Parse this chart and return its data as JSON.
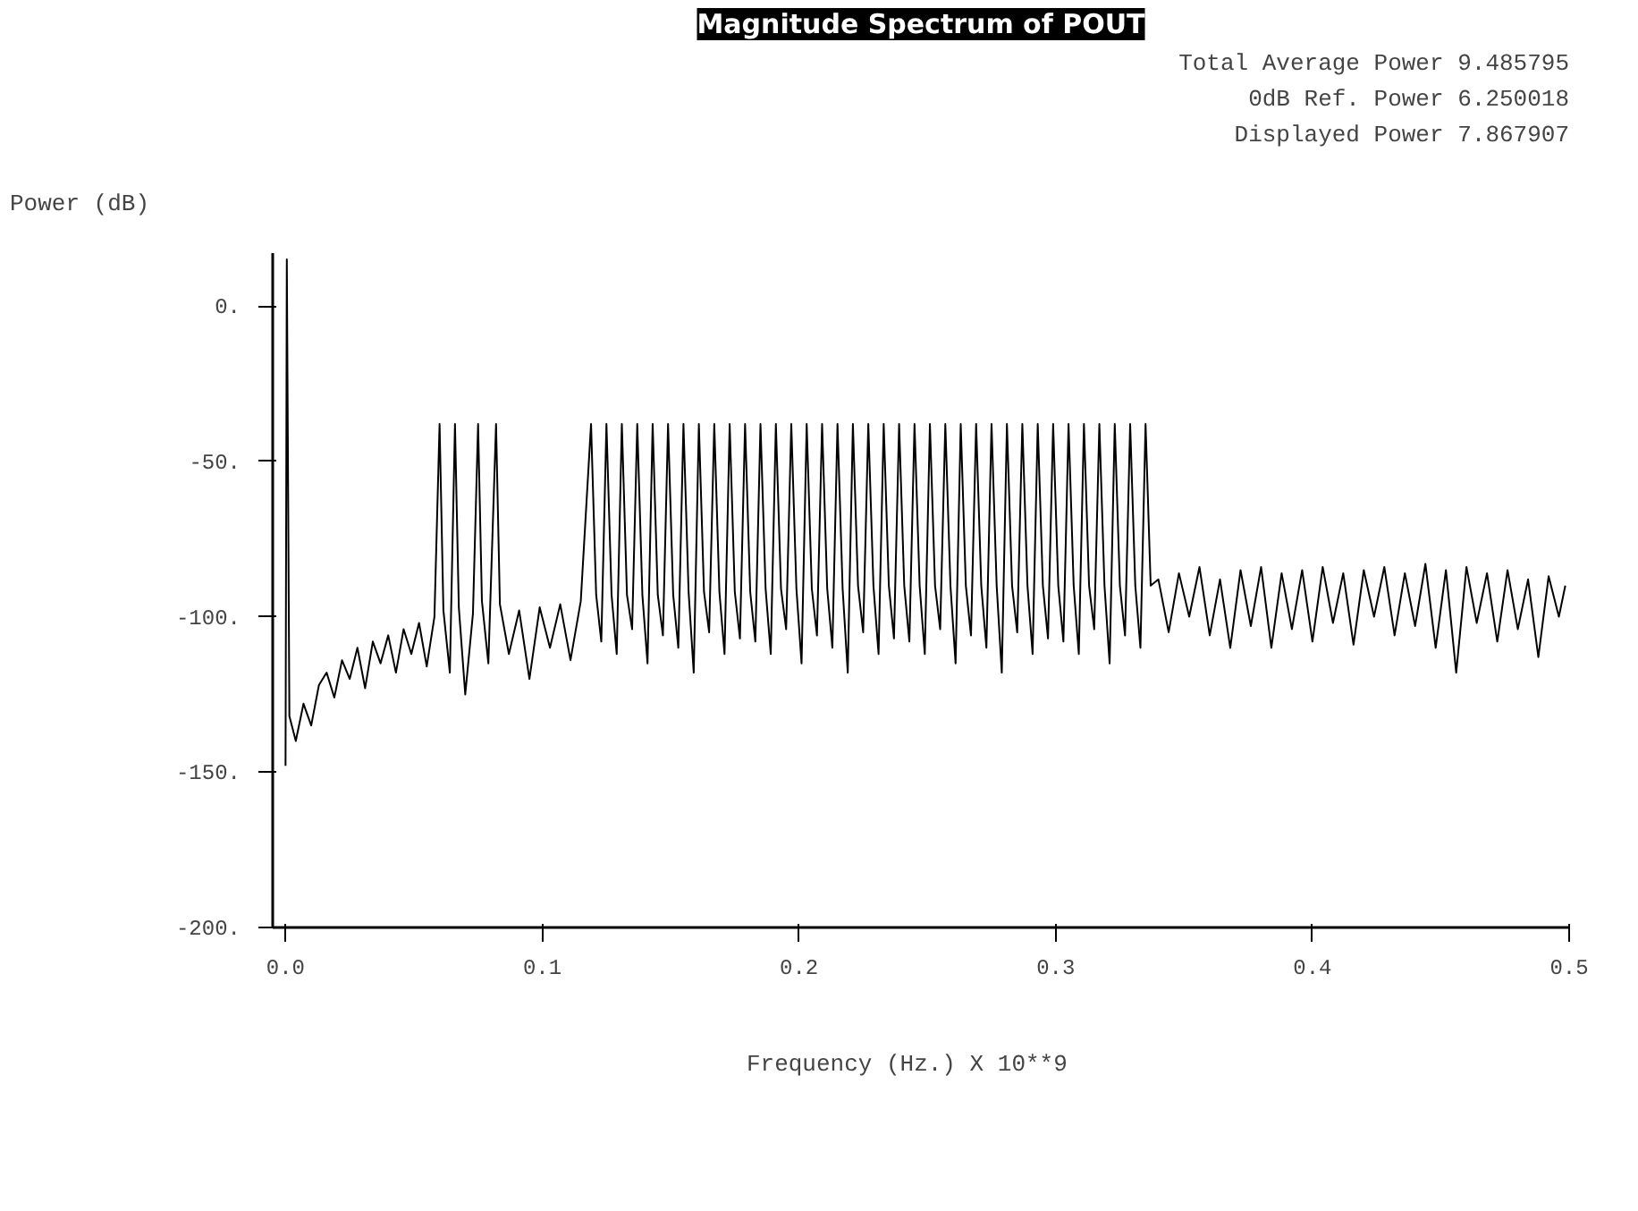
{
  "chart_data": {
    "type": "line",
    "title": "Magnitude Spectrum of POUT",
    "xlabel": "Frequency (Hz.)   X 10**9",
    "ylabel": "Power (dB)",
    "annotations": [
      "Total Average Power 9.485795",
      "0dB Ref. Power 6.250018",
      "Displayed Power 7.867907"
    ],
    "xlim": [
      -0.005,
      0.5
    ],
    "ylim": [
      -200,
      17
    ],
    "xticks": [
      {
        "value": 0,
        "label": "0.0"
      },
      {
        "value": 0.1,
        "label": "0.1"
      },
      {
        "value": 0.2,
        "label": "0.2"
      },
      {
        "value": 0.3,
        "label": "0.3"
      },
      {
        "value": 0.4,
        "label": "0.4"
      },
      {
        "value": 0.5,
        "label": "0.5"
      }
    ],
    "yticks": [
      {
        "value": 0,
        "label": "0."
      },
      {
        "value": -50,
        "label": "-50."
      },
      {
        "value": -100,
        "label": "-100."
      },
      {
        "value": -150,
        "label": "-150."
      },
      {
        "value": -200,
        "label": "-200."
      }
    ],
    "grid": false,
    "marker": "none",
    "line_style": "solid",
    "series": [
      {
        "color": "#000000",
        "x": [
          0,
          0.0005,
          0.0015,
          0.004,
          0.007,
          0.01,
          0.013,
          0.016,
          0.019,
          0.022,
          0.025,
          0.028,
          0.031,
          0.034,
          0.037,
          0.04,
          0.043,
          0.046,
          0.049,
          0.052,
          0.055,
          0.058,
          0.06,
          0.0615,
          0.064,
          0.066,
          0.0675,
          0.07,
          0.073,
          0.075,
          0.0765,
          0.079,
          0.082,
          0.0835,
          0.087,
          0.091,
          0.095,
          0.099,
          0.103,
          0.107,
          0.111,
          0.115,
          0.119,
          0.121,
          0.123,
          0.125,
          0.127,
          0.129,
          0.131,
          0.133,
          0.135,
          0.137,
          0.139,
          0.141,
          0.143,
          0.145,
          0.147,
          0.149,
          0.151,
          0.153,
          0.155,
          0.157,
          0.159,
          0.161,
          0.163,
          0.165,
          0.167,
          0.169,
          0.171,
          0.173,
          0.175,
          0.177,
          0.179,
          0.181,
          0.183,
          0.185,
          0.187,
          0.189,
          0.191,
          0.193,
          0.195,
          0.197,
          0.199,
          0.201,
          0.203,
          0.205,
          0.207,
          0.209,
          0.211,
          0.213,
          0.215,
          0.217,
          0.219,
          0.221,
          0.223,
          0.225,
          0.227,
          0.229,
          0.231,
          0.233,
          0.235,
          0.237,
          0.239,
          0.241,
          0.243,
          0.245,
          0.247,
          0.249,
          0.251,
          0.253,
          0.255,
          0.257,
          0.259,
          0.261,
          0.263,
          0.265,
          0.267,
          0.269,
          0.271,
          0.273,
          0.275,
          0.277,
          0.279,
          0.281,
          0.283,
          0.285,
          0.287,
          0.289,
          0.291,
          0.293,
          0.295,
          0.297,
          0.299,
          0.301,
          0.303,
          0.305,
          0.307,
          0.309,
          0.311,
          0.313,
          0.315,
          0.317,
          0.319,
          0.321,
          0.323,
          0.325,
          0.327,
          0.329,
          0.331,
          0.333,
          0.335,
          0.337,
          0.34,
          0.344,
          0.348,
          0.352,
          0.356,
          0.36,
          0.364,
          0.368,
          0.372,
          0.376,
          0.38,
          0.384,
          0.388,
          0.392,
          0.396,
          0.4,
          0.404,
          0.408,
          0.412,
          0.416,
          0.42,
          0.424,
          0.428,
          0.432,
          0.436,
          0.44,
          0.444,
          0.448,
          0.452,
          0.456,
          0.46,
          0.464,
          0.468,
          0.472,
          0.476,
          0.48,
          0.484,
          0.488,
          0.492,
          0.496,
          0.4985
        ],
        "values": [
          -148,
          15,
          -132,
          -140,
          -128,
          -135,
          -122,
          -118,
          -126,
          -114,
          -120,
          -110,
          -123,
          -108,
          -115,
          -106,
          -118,
          -104,
          -112,
          -102,
          -116,
          -100,
          -38,
          -98,
          -118,
          -38,
          -97,
          -125,
          -99,
          -38,
          -95,
          -115,
          -38,
          -96,
          -112,
          -98,
          -120,
          -97,
          -110,
          -96,
          -114,
          -95,
          -38,
          -93,
          -108,
          -38,
          -93,
          -112,
          -38,
          -93,
          -104,
          -38,
          -93,
          -115,
          -38,
          -93,
          -106,
          -38,
          -93,
          -110,
          -38,
          -92,
          -118,
          -38,
          -92,
          -105,
          -38,
          -92,
          -112,
          -38,
          -92,
          -107,
          -38,
          -92,
          -108,
          -38,
          -91,
          -112,
          -38,
          -91,
          -104,
          -38,
          -91,
          -115,
          -38,
          -91,
          -106,
          -38,
          -91,
          -110,
          -38,
          -91,
          -118,
          -38,
          -90,
          -105,
          -38,
          -90,
          -112,
          -38,
          -90,
          -107,
          -38,
          -90,
          -108,
          -38,
          -90,
          -112,
          -38,
          -90,
          -104,
          -38,
          -90,
          -115,
          -38,
          -90,
          -106,
          -38,
          -90,
          -110,
          -38,
          -90,
          -118,
          -38,
          -90,
          -105,
          -38,
          -90,
          -112,
          -38,
          -90,
          -107,
          -38,
          -90,
          -108,
          -38,
          -90,
          -112,
          -38,
          -90,
          -104,
          -38,
          -90,
          -115,
          -38,
          -90,
          -106,
          -38,
          -90,
          -110,
          -38,
          -90,
          -88,
          -105,
          -86,
          -100,
          -84,
          -106,
          -88,
          -110,
          -85,
          -103,
          -84,
          -110,
          -86,
          -104,
          -85,
          -108,
          -84,
          -102,
          -86,
          -109,
          -85,
          -100,
          -84,
          -106,
          -86,
          -103,
          -83,
          -110,
          -85,
          -118,
          -84,
          -102,
          -86,
          -108,
          -85,
          -104,
          -88,
          -113,
          -87,
          -100,
          -90
        ]
      }
    ]
  }
}
